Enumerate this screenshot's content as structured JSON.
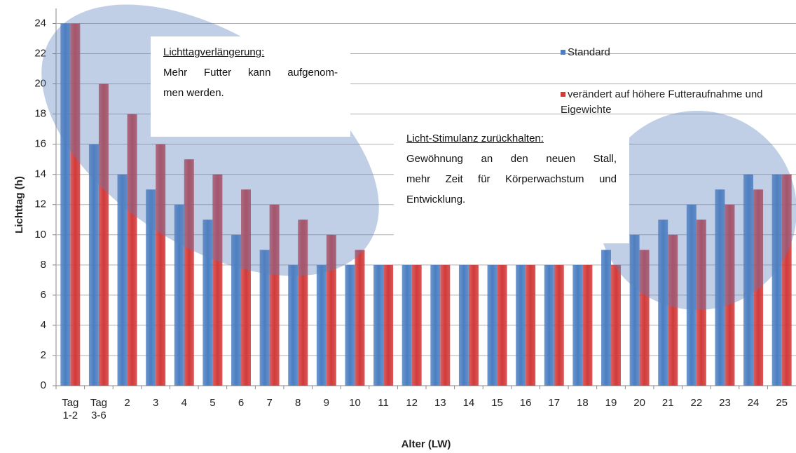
{
  "chart_data": {
    "type": "bar",
    "y_label": "Lichttag (h)",
    "x_label": "Alter (LW)",
    "categories": [
      "Tag 1-2",
      "Tag 3-6",
      "2",
      "3",
      "4",
      "5",
      "6",
      "7",
      "8",
      "9",
      "10",
      "11",
      "12",
      "13",
      "14",
      "15",
      "16",
      "17",
      "18",
      "19",
      "20",
      "21",
      "22",
      "23",
      "24",
      "25"
    ],
    "series": [
      {
        "name": "Standard",
        "color": "#4a7ec2",
        "values": [
          24,
          16,
          14,
          13,
          12,
          11,
          10,
          9,
          8,
          8,
          8,
          8,
          8,
          8,
          8,
          8,
          8,
          8,
          8,
          9,
          10,
          11,
          12,
          13,
          14,
          14
        ]
      },
      {
        "name": "verändert auf höhere Futteraufnahme und Eigewichte",
        "color": "#d23a3a",
        "values": [
          24,
          20,
          18,
          16,
          15,
          14,
          13,
          12,
          11,
          10,
          9,
          8,
          8,
          8,
          8,
          8,
          8,
          8,
          8,
          8,
          9,
          10,
          11,
          12,
          13,
          14
        ]
      }
    ],
    "ylim": [
      0,
      25
    ],
    "yticks": [
      0,
      2,
      4,
      6,
      8,
      10,
      12,
      14,
      16,
      18,
      20,
      22,
      24
    ],
    "grid": true,
    "annotations": [
      {
        "title": "Lichttagverlängerung:",
        "lines": [
          "Mehr Futter kann aufgenom-",
          "men werden."
        ]
      },
      {
        "title": "Licht-Stimulanz zurückhalten:",
        "lines": [
          "Gewöhnung an den neuen Stall,",
          "mehr Zeit für Körperwachstum und",
          "Entwicklung."
        ]
      }
    ]
  }
}
